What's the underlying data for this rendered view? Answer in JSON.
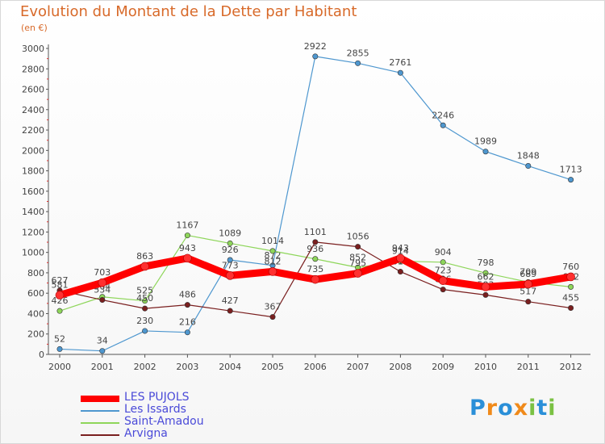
{
  "title": "Evolution du Montant de la Dette par Habitant",
  "subtitle": "(en €)",
  "logo": {
    "letters": [
      {
        "ch": "P",
        "color": "#2a8fd8"
      },
      {
        "ch": "r",
        "color": "#f08a1a"
      },
      {
        "ch": "o",
        "color": "#2a8fd8"
      },
      {
        "ch": "x",
        "color": "#f08a1a"
      },
      {
        "ch": "i",
        "color": "#7ac143"
      },
      {
        "ch": "t",
        "color": "#2a8fd8"
      },
      {
        "ch": "i",
        "color": "#7ac143"
      }
    ]
  },
  "chart_data": {
    "type": "line",
    "title": "Evolution du Montant de la Dette par Habitant",
    "ylabel": "(en €)",
    "xlabel": "",
    "x": [
      "2000",
      "2001",
      "2002",
      "2003",
      "2004",
      "2005",
      "2006",
      "2007",
      "2008",
      "2009",
      "2010",
      "2011",
      "2012"
    ],
    "ylim": [
      0,
      3000
    ],
    "yticks": [
      0,
      200,
      400,
      600,
      800,
      1000,
      1200,
      1400,
      1600,
      1800,
      2000,
      2200,
      2400,
      2600,
      2800,
      3000
    ],
    "grid": false,
    "legend": "bottom-left",
    "series": [
      {
        "name": "LES PUJOLS",
        "color": "#ff0000",
        "values": [
          581,
          703,
          863,
          943,
          773,
          812,
          735,
          795,
          943,
          723,
          662,
          689,
          760
        ]
      },
      {
        "name": "Les Issards",
        "color": "#4e97cf",
        "values": [
          52,
          34,
          230,
          216,
          926,
          872,
          2922,
          2855,
          2761,
          2246,
          1989,
          1848,
          1713
        ]
      },
      {
        "name": "Saint-Amadou",
        "color": "#8ed65a",
        "values": [
          426,
          564,
          525,
          1167,
          1089,
          1014,
          936,
          852,
          914,
          904,
          798,
          709,
          662
        ]
      },
      {
        "name": "Arvigna",
        "color": "#7a1f1f",
        "values": [
          627,
          534,
          450,
          486,
          427,
          367,
          1101,
          1056,
          811,
          636,
          583,
          517,
          455
        ]
      }
    ]
  }
}
